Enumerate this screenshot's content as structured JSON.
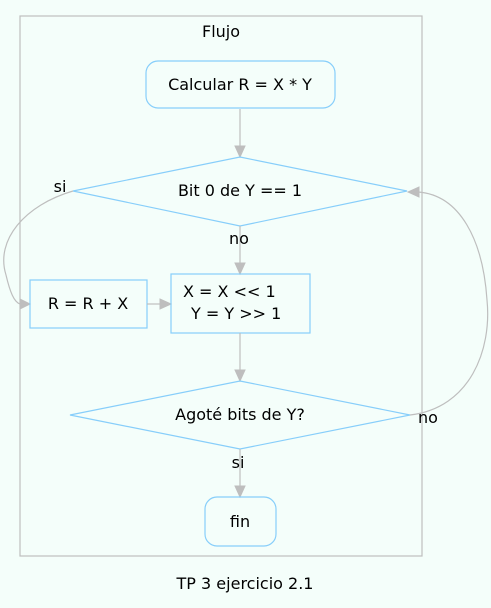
{
  "cluster": {
    "title": "Flujo"
  },
  "nodes": {
    "calc": "Calcular R = X * Y",
    "bit0": "Bit 0 de Y == 1",
    "add": "R = R + X",
    "shift_line1": "X = X << 1",
    "shift_line2": "Y = Y >> 1",
    "done_check": "Agoté bits de Y?",
    "fin": "fin"
  },
  "edge_labels": {
    "bit0_yes": "si",
    "bit0_no": "no",
    "check_no": "no",
    "check_yes": "si"
  },
  "caption": "TP 3 ejercicio 2.1",
  "colors": {
    "background": "#f4fefa",
    "node_border": "#87cefa",
    "edge": "#bebebe",
    "cluster_border": "#bebebe"
  }
}
